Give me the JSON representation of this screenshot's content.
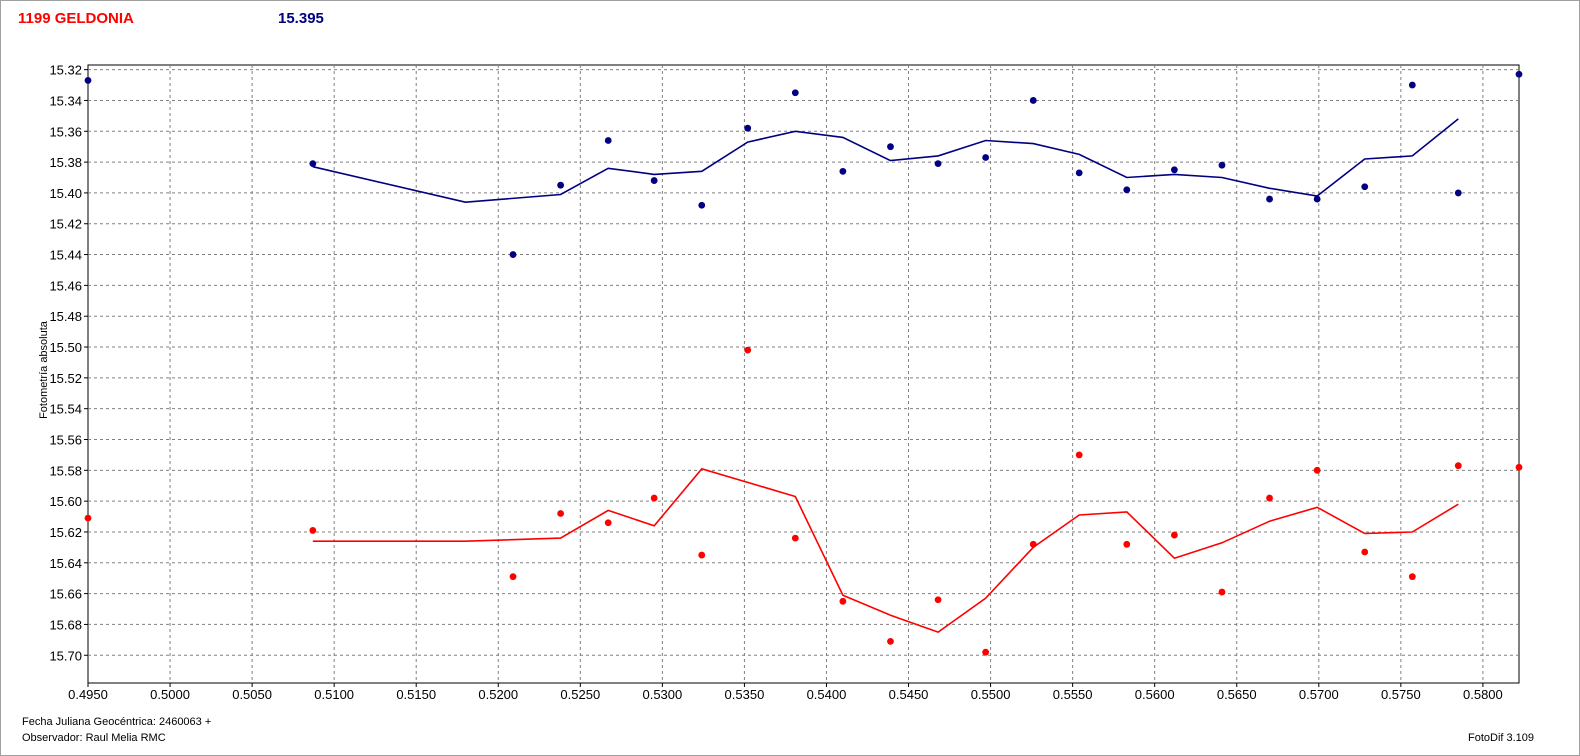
{
  "header": {
    "object_name": "1199 GELDONIA",
    "reference_mag": "15.395"
  },
  "footer": {
    "date_label": "Fecha Juliana Geocéntrica: 2460063 +",
    "observer_label": "Observador: Raul Melia RMC",
    "software_label": "FotoDif 3.109"
  },
  "colors": {
    "blue_series": "#000080",
    "red_series": "#ff0000",
    "grid": "#808080"
  },
  "chart_data": {
    "type": "scatter",
    "ylabel": "Fotometría absoluta",
    "xlabel": "",
    "xlim": [
      0.495,
      0.5822
    ],
    "ylim": [
      15.317,
      15.718
    ],
    "y_inverted": true,
    "grid": true,
    "x_ticks": [
      "0.4950",
      "0.5000",
      "0.5050",
      "0.5100",
      "0.5150",
      "0.5200",
      "0.5250",
      "0.5300",
      "0.5350",
      "0.5400",
      "0.5450",
      "0.5500",
      "0.5550",
      "0.5600",
      "0.5650",
      "0.5700",
      "0.5750",
      "0.5800"
    ],
    "y_ticks": [
      "15.32",
      "15.34",
      "15.36",
      "15.38",
      "15.40",
      "15.42",
      "15.44",
      "15.46",
      "15.48",
      "15.50",
      "15.52",
      "15.54",
      "15.56",
      "15.58",
      "15.60",
      "15.62",
      "15.64",
      "15.66",
      "15.68",
      "15.70"
    ],
    "series": [
      {
        "color": "#000080",
        "points": [
          [
            0.495,
            15.327
          ],
          [
            0.5087,
            15.381
          ],
          [
            0.5209,
            15.44
          ],
          [
            0.5238,
            15.395
          ],
          [
            0.5267,
            15.366
          ],
          [
            0.5295,
            15.392
          ],
          [
            0.5324,
            15.408
          ],
          [
            0.5352,
            15.358
          ],
          [
            0.5381,
            15.335
          ],
          [
            0.541,
            15.386
          ],
          [
            0.5439,
            15.37
          ],
          [
            0.5468,
            15.381
          ],
          [
            0.5497,
            15.377
          ],
          [
            0.5526,
            15.34
          ],
          [
            0.5554,
            15.387
          ],
          [
            0.5583,
            15.398
          ],
          [
            0.5612,
            15.385
          ],
          [
            0.5641,
            15.382
          ],
          [
            0.567,
            15.404
          ],
          [
            0.5699,
            15.404
          ],
          [
            0.5728,
            15.396
          ],
          [
            0.5757,
            15.33
          ],
          [
            0.5785,
            15.4
          ],
          [
            0.5822,
            15.323
          ]
        ],
        "trend": [
          [
            0.5087,
            15.383
          ],
          [
            0.518,
            15.406
          ],
          [
            0.5238,
            15.401
          ],
          [
            0.5267,
            15.384
          ],
          [
            0.5295,
            15.388
          ],
          [
            0.5324,
            15.386
          ],
          [
            0.5352,
            15.367
          ],
          [
            0.5381,
            15.36
          ],
          [
            0.541,
            15.364
          ],
          [
            0.5439,
            15.379
          ],
          [
            0.5468,
            15.376
          ],
          [
            0.5497,
            15.366
          ],
          [
            0.5526,
            15.368
          ],
          [
            0.5554,
            15.375
          ],
          [
            0.5583,
            15.39
          ],
          [
            0.5612,
            15.388
          ],
          [
            0.5641,
            15.39
          ],
          [
            0.567,
            15.397
          ],
          [
            0.5699,
            15.402
          ],
          [
            0.5728,
            15.378
          ],
          [
            0.5757,
            15.376
          ],
          [
            0.5785,
            15.352
          ]
        ]
      },
      {
        "color": "#ff0000",
        "points": [
          [
            0.495,
            15.611
          ],
          [
            0.5087,
            15.619
          ],
          [
            0.5209,
            15.649
          ],
          [
            0.5238,
            15.608
          ],
          [
            0.5267,
            15.614
          ],
          [
            0.5295,
            15.598
          ],
          [
            0.5324,
            15.635
          ],
          [
            0.5352,
            15.502
          ],
          [
            0.5381,
            15.624
          ],
          [
            0.541,
            15.665
          ],
          [
            0.5439,
            15.691
          ],
          [
            0.5468,
            15.664
          ],
          [
            0.5497,
            15.698
          ],
          [
            0.5526,
            15.628
          ],
          [
            0.5554,
            15.57
          ],
          [
            0.5583,
            15.628
          ],
          [
            0.5612,
            15.622
          ],
          [
            0.5641,
            15.659
          ],
          [
            0.567,
            15.598
          ],
          [
            0.5699,
            15.58
          ],
          [
            0.5728,
            15.633
          ],
          [
            0.5757,
            15.649
          ],
          [
            0.5785,
            15.577
          ],
          [
            0.5822,
            15.578
          ]
        ],
        "trend": [
          [
            0.5087,
            15.626
          ],
          [
            0.518,
            15.626
          ],
          [
            0.5238,
            15.624
          ],
          [
            0.5267,
            15.606
          ],
          [
            0.5295,
            15.616
          ],
          [
            0.5324,
            15.579
          ],
          [
            0.5381,
            15.597
          ],
          [
            0.541,
            15.661
          ],
          [
            0.5439,
            15.674
          ],
          [
            0.5468,
            15.685
          ],
          [
            0.5497,
            15.663
          ],
          [
            0.5526,
            15.63
          ],
          [
            0.5554,
            15.609
          ],
          [
            0.5583,
            15.607
          ],
          [
            0.5612,
            15.637
          ],
          [
            0.5641,
            15.627
          ],
          [
            0.567,
            15.613
          ],
          [
            0.5699,
            15.604
          ],
          [
            0.5728,
            15.621
          ],
          [
            0.5757,
            15.62
          ],
          [
            0.5785,
            15.602
          ]
        ]
      }
    ]
  }
}
